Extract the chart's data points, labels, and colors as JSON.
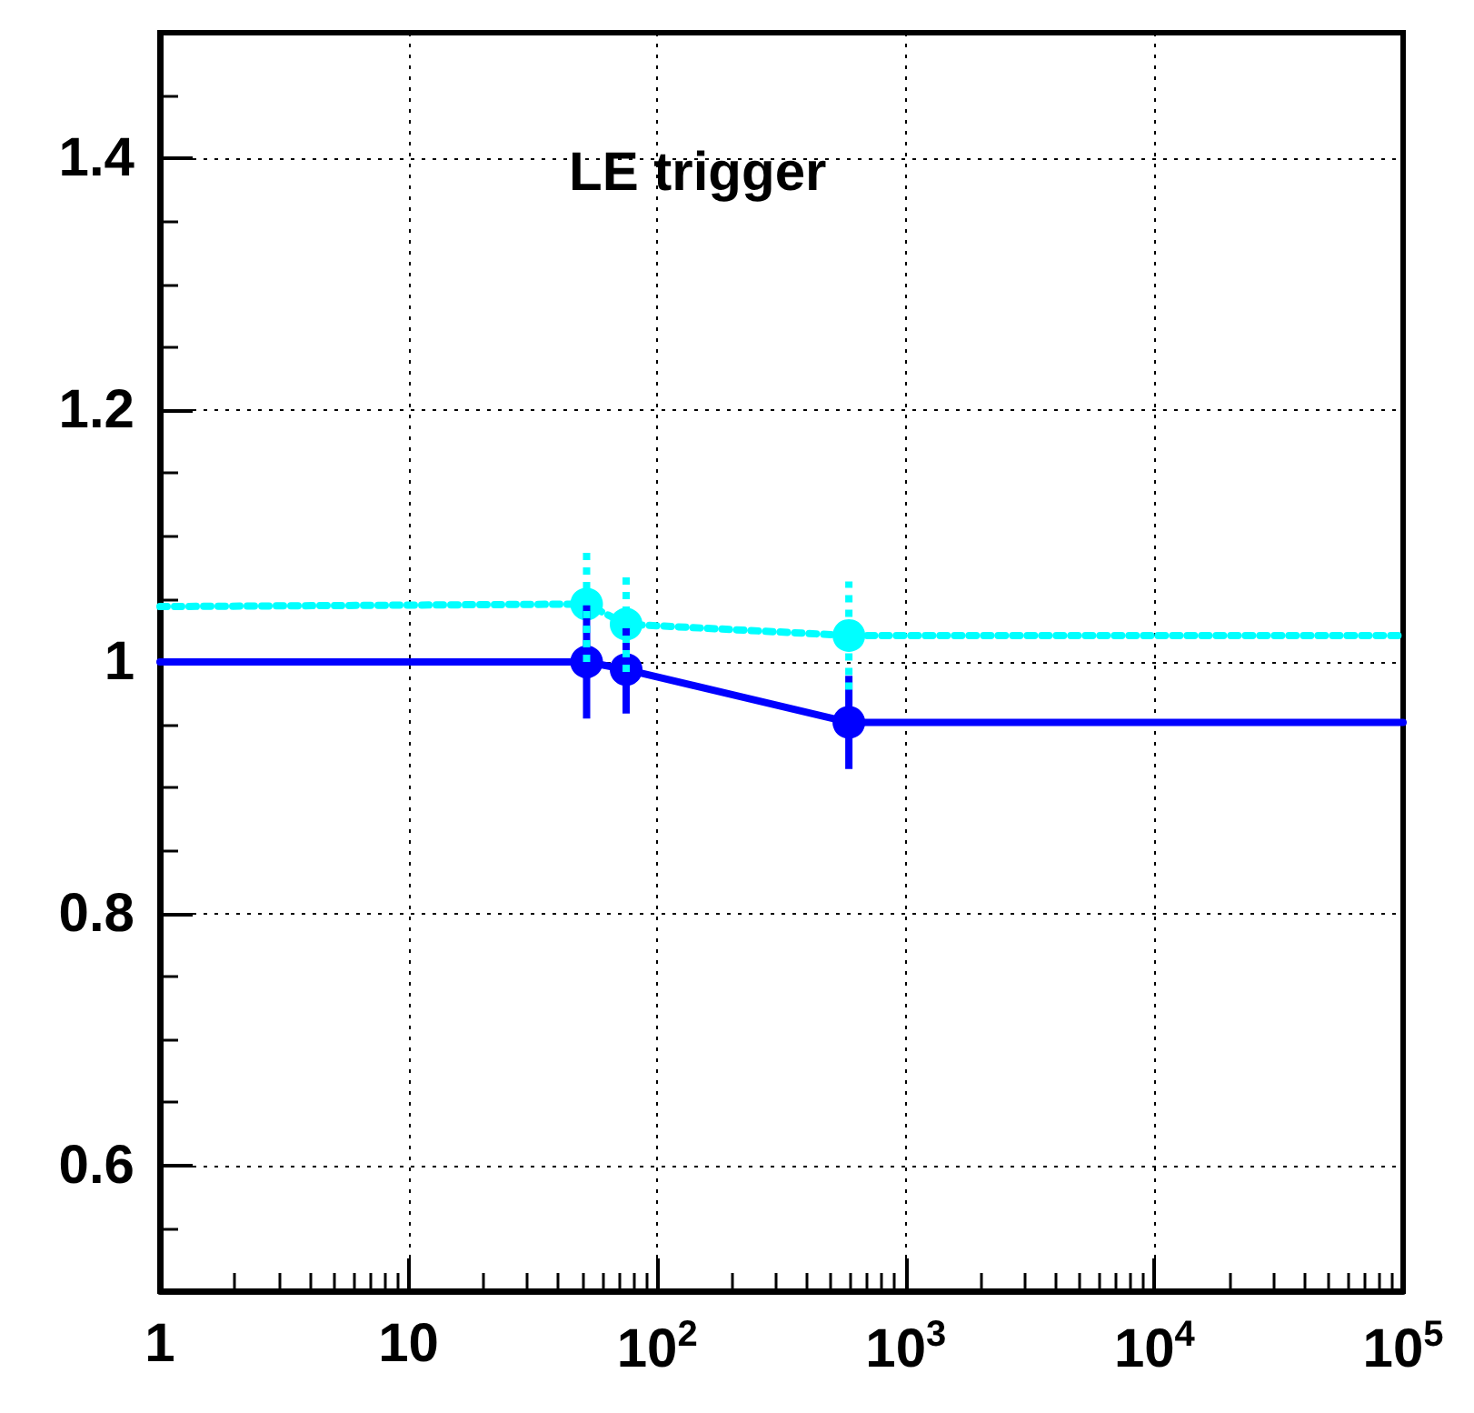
{
  "chart_data": {
    "type": "line",
    "log": "x",
    "xlim": [
      1,
      100000
    ],
    "ylim": [
      0.5,
      1.5
    ],
    "xticks": [
      1,
      10,
      {
        "value": 100,
        "label": "10$^{2}$"
      },
      {
        "value": 1000,
        "label": "10$^{3}$"
      },
      {
        "value": 10000,
        "label": "10$^{4}$"
      },
      {
        "value": 100000,
        "label": "10$^{5}$"
      }
    ],
    "yticks": [
      0.6,
      0.8,
      1,
      1.2,
      1.4
    ],
    "grid": true,
    "marker": "circle",
    "annotations": [
      "LE trigger"
    ],
    "series": [
      {
        "color": "#0000ff",
        "line_style": "solid",
        "x": [
          1,
          52,
          75,
          590,
          100000
        ],
        "values": [
          1.0,
          1.0,
          0.994,
          0.952,
          0.952
        ],
        "errors": [
          null,
          0.045,
          0.035,
          0.037,
          null
        ]
      },
      {
        "color": "#00ffff",
        "line_style": "dotted",
        "x": [
          1,
          52,
          75,
          590,
          100000
        ],
        "values": [
          1.044,
          1.046,
          1.03,
          1.021,
          1.021
        ],
        "errors": [
          null,
          0.046,
          0.038,
          0.043,
          null
        ]
      }
    ]
  }
}
